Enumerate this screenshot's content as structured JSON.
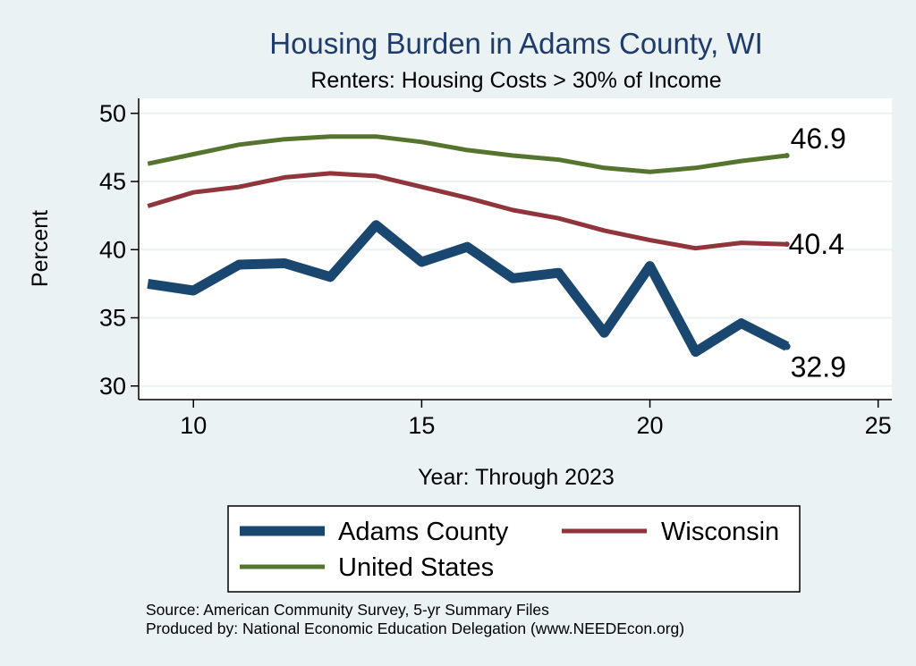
{
  "chart_data": {
    "type": "line",
    "title": "Housing Burden in Adams County, WI",
    "subtitle": "Renters: Housing Costs > 30% of Income",
    "xlabel": "Year: Through 2023",
    "ylabel": "Percent",
    "xlim": [
      8.8,
      25.3
    ],
    "ylim": [
      29,
      51.1
    ],
    "xticks": [
      10,
      15,
      20,
      25
    ],
    "yticks": [
      30,
      35,
      40,
      45,
      50
    ],
    "grid": true,
    "legend_position": "bottom",
    "x": [
      9,
      10,
      11,
      12,
      13,
      14,
      15,
      16,
      17,
      18,
      19,
      20,
      21,
      22,
      23
    ],
    "series": [
      {
        "name": "Adams County",
        "values": [
          37.5,
          37.0,
          38.9,
          39.0,
          38.0,
          41.8,
          39.1,
          40.2,
          37.9,
          38.3,
          33.9,
          38.8,
          32.5,
          34.6,
          32.9
        ],
        "end_label": "32.9",
        "color": "#1A476F"
      },
      {
        "name": "Wisconsin",
        "values": [
          43.2,
          44.2,
          44.6,
          45.3,
          45.6,
          45.4,
          44.6,
          43.8,
          42.9,
          42.3,
          41.4,
          40.7,
          40.1,
          40.5,
          40.4
        ],
        "end_label": "40.4",
        "color": "#90353B"
      },
      {
        "name": "United States",
        "values": [
          46.3,
          47.0,
          47.7,
          48.1,
          48.3,
          48.3,
          47.9,
          47.3,
          46.9,
          46.6,
          46.0,
          45.7,
          46.0,
          46.5,
          46.9
        ],
        "end_label": "46.9",
        "color": "#55752F"
      }
    ]
  },
  "footnotes": {
    "source": "Source: American Community Survey, 5-yr Summary Files",
    "produced": "Produced by: National Economic Education Delegation (www.NEEDEcon.org)"
  },
  "colors": {
    "background": "#EAF2F3",
    "plot_area": "#FFFFFF",
    "title": "#1E3B6B",
    "grid": "#EAF2F3",
    "text": "#000000"
  }
}
